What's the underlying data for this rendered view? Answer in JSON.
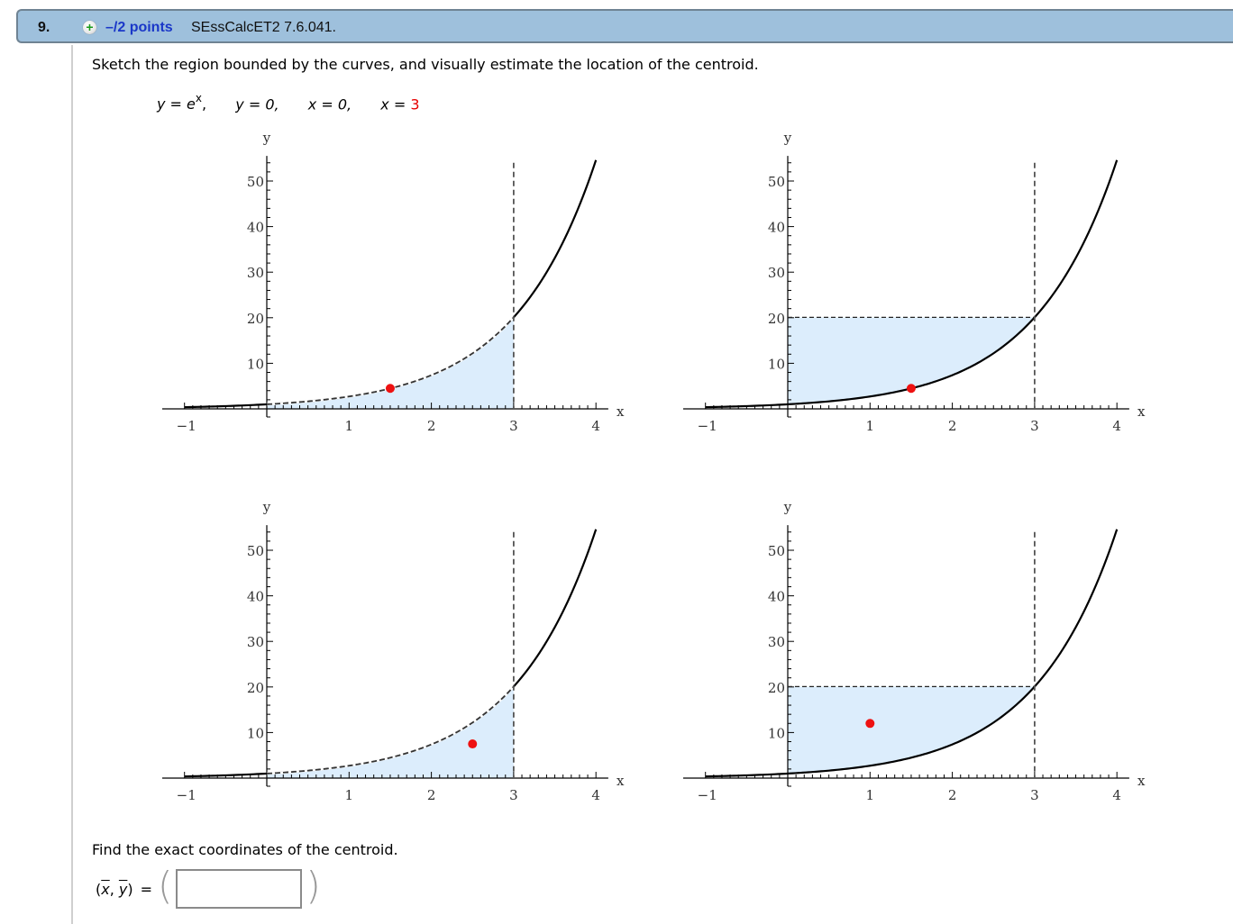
{
  "question": {
    "number": "9.",
    "points": "–/2 points",
    "source": "SEssCalcET2 7.6.041.",
    "add_icon": "plus-circle-icon"
  },
  "prompt": "Sketch the region bounded by the curves, and visually estimate the location of the centroid.",
  "equations": {
    "eq1_lhs": "y",
    "eq1_eq": " = ",
    "eq1_base": "e",
    "eq1_exp": "x",
    "eq1_sep": ",",
    "eq2": "y = 0,",
    "eq3": "x = 0,",
    "eq4_lhs": "x = ",
    "eq4_val": "3"
  },
  "colors": {
    "header_bg": "#9ec0dc",
    "header_border": "#6f8393",
    "points_text": "#1a37c8",
    "highlight": "#e60000",
    "fill": "#dcedfc",
    "centroid": "#ee1111"
  },
  "axes": {
    "xlabel": "x",
    "ylabel": "y",
    "x_ticks": [
      -1,
      1,
      2,
      3,
      4
    ],
    "y_ticks": [
      10,
      20,
      30,
      40,
      50
    ],
    "xlim": [
      -1,
      4
    ],
    "ylim": [
      0,
      55
    ]
  },
  "chart_data": [
    {
      "type": "area",
      "title": "Option 1 (top-left)",
      "function": "y = e^x",
      "x": [
        -1,
        -0.5,
        0,
        0.5,
        1,
        1.5,
        2,
        2.5,
        3,
        3.5,
        4
      ],
      "y": [
        0.37,
        0.61,
        1,
        1.65,
        2.72,
        4.48,
        7.39,
        12.18,
        20.09,
        33.12,
        54.6
      ],
      "region": "under-curve",
      "region_x": [
        0,
        3
      ],
      "centroid": [
        1.5,
        4.5
      ],
      "xlabel": "x",
      "ylabel": "y",
      "xlim": [
        -1,
        4
      ],
      "ylim": [
        0,
        55
      ]
    },
    {
      "type": "area",
      "title": "Option 2 (top-right)",
      "function": "y = e^x",
      "x": [
        -1,
        -0.5,
        0,
        0.5,
        1,
        1.5,
        2,
        2.5,
        3,
        3.5,
        4
      ],
      "y": [
        0.37,
        0.61,
        1,
        1.65,
        2.72,
        4.48,
        7.39,
        12.18,
        20.09,
        33.12,
        54.6
      ],
      "region": "above-curve",
      "region_x": [
        0,
        3
      ],
      "region_top": 20.09,
      "centroid": [
        1.5,
        4.5
      ],
      "xlabel": "x",
      "ylabel": "y",
      "xlim": [
        -1,
        4
      ],
      "ylim": [
        0,
        55
      ]
    },
    {
      "type": "area",
      "title": "Option 3 (bottom-left)",
      "function": "y = e^x",
      "x": [
        -1,
        -0.5,
        0,
        0.5,
        1,
        1.5,
        2,
        2.5,
        3,
        3.5,
        4
      ],
      "y": [
        0.37,
        0.61,
        1,
        1.65,
        2.72,
        4.48,
        7.39,
        12.18,
        20.09,
        33.12,
        54.6
      ],
      "region": "under-curve",
      "region_x": [
        0,
        3
      ],
      "centroid": [
        2.5,
        7.5
      ],
      "xlabel": "x",
      "ylabel": "y",
      "xlim": [
        -1,
        4
      ],
      "ylim": [
        0,
        55
      ]
    },
    {
      "type": "area",
      "title": "Option 4 (bottom-right)",
      "function": "y = e^x",
      "x": [
        -1,
        -0.5,
        0,
        0.5,
        1,
        1.5,
        2,
        2.5,
        3,
        3.5,
        4
      ],
      "y": [
        0.37,
        0.61,
        1,
        1.65,
        2.72,
        4.48,
        7.39,
        12.18,
        20.09,
        33.12,
        54.6
      ],
      "region": "above-curve",
      "region_x": [
        0,
        3
      ],
      "region_top": 20.09,
      "centroid": [
        1.0,
        12.0
      ],
      "xlabel": "x",
      "ylabel": "y",
      "xlim": [
        -1,
        4
      ],
      "ylim": [
        0,
        55
      ]
    }
  ],
  "answer": {
    "instruction": "Find the exact coordinates of the centroid.",
    "label_open": "(",
    "label_x": "x",
    "label_sep": ", ",
    "label_y": "y",
    "label_close": ")",
    "equals": "=",
    "paren_open": "(",
    "paren_close": ")",
    "value": "",
    "placeholder": ""
  }
}
